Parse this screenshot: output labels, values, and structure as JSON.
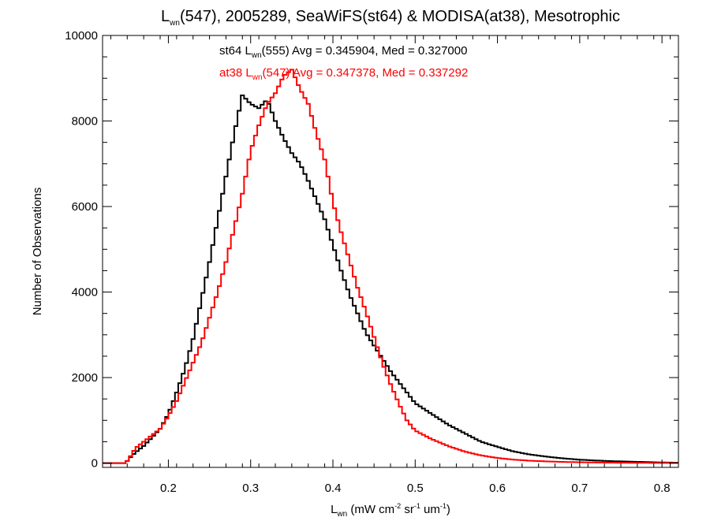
{
  "chart_data": {
    "type": "line",
    "title": {
      "prefix": "L",
      "sub": "wn",
      "rest": "(547), 2005289, SeaWiFS(st64) & MODISA(at38), Mesotrophic"
    },
    "xlabel": {
      "base": "L",
      "sub": "wn",
      "p1": " (mW cm",
      "sup1": "-2",
      "p2": " sr",
      "sup2": "-1",
      "p3": " um",
      "sup3": "-1",
      "p4": ")"
    },
    "ylabel": "Number of Observations",
    "xlim": [
      0.12,
      0.82
    ],
    "ylim": [
      -100,
      10000
    ],
    "xticks": [
      "0.2",
      "0.3",
      "0.4",
      "0.5",
      "0.6",
      "0.7",
      "0.8"
    ],
    "yticks": [
      "0",
      "2000",
      "4000",
      "6000",
      "8000",
      "10000"
    ],
    "grid": false,
    "legend_placement": "top-center",
    "annotations": [
      {
        "color": "#000000",
        "pre": "st64 L",
        "sub": "wn",
        "post": "(555) Avg = 0.345904, Med = 0.327000"
      },
      {
        "color": "#ff0000",
        "pre": "at38 L",
        "sub": "wn",
        "post": "(547) Avg = 0.347378, Med = 0.337292"
      }
    ],
    "series": [
      {
        "color": "#000000",
        "x": [
          0.12,
          0.148,
          0.152,
          0.16,
          0.17,
          0.18,
          0.19,
          0.2,
          0.21,
          0.22,
          0.23,
          0.24,
          0.25,
          0.26,
          0.27,
          0.28,
          0.29,
          0.3,
          0.31,
          0.32,
          0.33,
          0.34,
          0.35,
          0.36,
          0.37,
          0.38,
          0.39,
          0.4,
          0.41,
          0.42,
          0.43,
          0.44,
          0.45,
          0.46,
          0.47,
          0.48,
          0.49,
          0.5,
          0.52,
          0.54,
          0.56,
          0.58,
          0.6,
          0.62,
          0.64,
          0.66,
          0.68,
          0.7,
          0.72,
          0.74,
          0.76,
          0.78,
          0.8,
          0.82
        ],
        "y": [
          0,
          0,
          100,
          250,
          400,
          600,
          800,
          1150,
          1650,
          2200,
          2900,
          3800,
          4700,
          5700,
          6700,
          7700,
          8600,
          8400,
          8300,
          8500,
          8000,
          7600,
          7250,
          7000,
          6600,
          6150,
          5700,
          5100,
          4500,
          3950,
          3500,
          3050,
          2750,
          2450,
          2150,
          1900,
          1650,
          1400,
          1150,
          900,
          700,
          500,
          380,
          270,
          200,
          150,
          110,
          80,
          60,
          45,
          35,
          25,
          15,
          10
        ]
      },
      {
        "color": "#ff0000",
        "x": [
          0.12,
          0.148,
          0.152,
          0.16,
          0.17,
          0.18,
          0.19,
          0.2,
          0.21,
          0.22,
          0.23,
          0.24,
          0.25,
          0.26,
          0.27,
          0.28,
          0.29,
          0.3,
          0.31,
          0.32,
          0.33,
          0.34,
          0.35,
          0.36,
          0.37,
          0.38,
          0.39,
          0.4,
          0.41,
          0.42,
          0.43,
          0.44,
          0.45,
          0.46,
          0.47,
          0.48,
          0.49,
          0.5,
          0.52,
          0.54,
          0.56,
          0.58,
          0.6,
          0.62,
          0.64,
          0.66,
          0.68,
          0.7,
          0.72,
          0.74,
          0.76,
          0.78,
          0.8,
          0.82
        ],
        "y": [
          0,
          0,
          100,
          350,
          500,
          650,
          800,
          1100,
          1450,
          1900,
          2350,
          2800,
          3400,
          4000,
          4700,
          5500,
          6300,
          7300,
          7900,
          8400,
          8650,
          9050,
          9200,
          8750,
          8400,
          7700,
          7100,
          6100,
          5400,
          4750,
          4100,
          3550,
          2950,
          2350,
          1850,
          1400,
          1000,
          760,
          560,
          400,
          270,
          180,
          120,
          80,
          55,
          40,
          28,
          20,
          14,
          10,
          7,
          5,
          4,
          3
        ]
      }
    ]
  }
}
